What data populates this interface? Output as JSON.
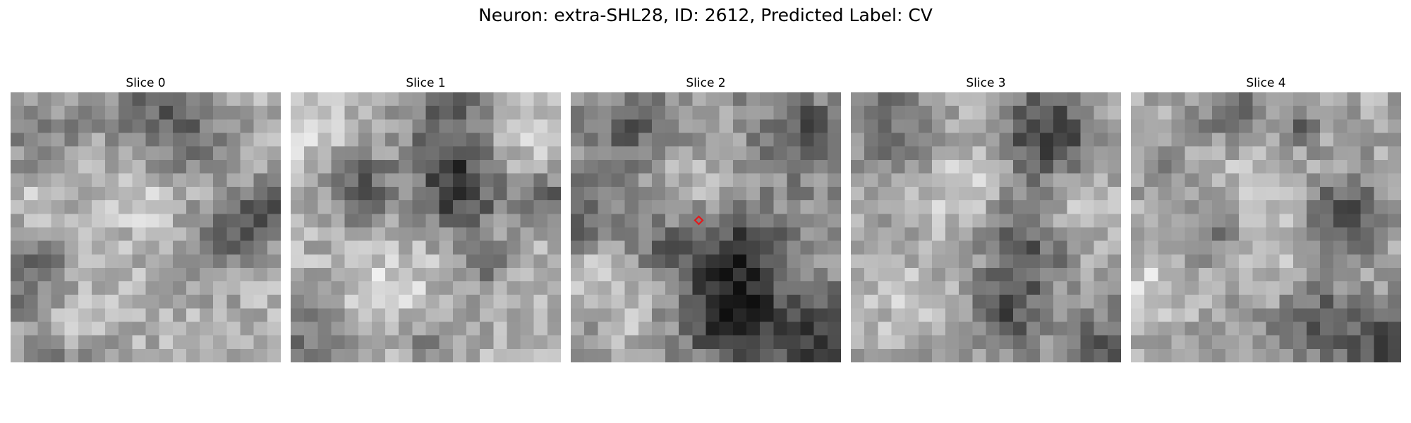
{
  "figure": {
    "title": "Neuron: extra-SHL28, ID: 2612, Predicted Label: CV"
  },
  "grid_size": 20,
  "marker": {
    "slice_index": 2,
    "shape": "diamond-outline",
    "color": "#e41a1c",
    "cell": [
      9.5,
      9.5
    ]
  },
  "slices": [
    {
      "title": "Slice 0",
      "base": 175,
      "dark_blobs": [
        [
          11,
          2,
          2.8,
          90
        ],
        [
          1,
          2,
          3,
          45
        ],
        [
          18.5,
          8.5,
          1.6,
          100
        ],
        [
          15,
          10.5,
          1.8,
          80
        ],
        [
          0,
          12.5,
          2.5,
          70
        ],
        [
          3,
          19.5,
          1.5,
          50
        ],
        [
          6,
          19.5,
          1.5,
          45
        ]
      ],
      "light_blobs": [
        [
          1.5,
          7.5,
          1.4,
          55
        ],
        [
          9,
          6.5,
          2.5,
          40
        ],
        [
          5,
          17.5,
          2,
          30
        ]
      ]
    },
    {
      "title": "Slice 1",
      "base": 180,
      "dark_blobs": [
        [
          12,
          6.5,
          2.3,
          130
        ],
        [
          4.5,
          6.5,
          2,
          85
        ],
        [
          19,
          7.5,
          1.5,
          80
        ],
        [
          11,
          0.5,
          2.6,
          80
        ],
        [
          1,
          17.5,
          2.2,
          60
        ],
        [
          10,
          17.5,
          2,
          55
        ],
        [
          14,
          12.5,
          1.2,
          55
        ]
      ],
      "light_blobs": [
        [
          7,
          14.5,
          2.5,
          40
        ],
        [
          1,
          2.5,
          2,
          35
        ],
        [
          16,
          3.5,
          2,
          30
        ]
      ]
    },
    {
      "title": "Slice 2",
      "base": 150,
      "dark_blobs": [
        [
          12,
          11.5,
          2.5,
          95
        ],
        [
          11,
          16,
          2.4,
          110
        ],
        [
          17.5,
          17.5,
          2.2,
          90
        ],
        [
          16.5,
          2.5,
          2,
          70
        ],
        [
          4,
          2,
          2,
          55
        ],
        [
          0,
          8.5,
          1.8,
          55
        ],
        [
          6.5,
          10.5,
          1.5,
          45
        ]
      ],
      "light_blobs": [
        [
          1,
          13,
          1.5,
          55
        ],
        [
          9,
          6.5,
          2.5,
          35
        ],
        [
          4,
          16,
          2,
          35
        ]
      ]
    },
    {
      "title": "Slice 3",
      "base": 168,
      "dark_blobs": [
        [
          14,
          2.5,
          2.3,
          110
        ],
        [
          12.5,
          10.5,
          2.5,
          80
        ],
        [
          11,
          15.5,
          1.8,
          90
        ],
        [
          18,
          18.5,
          2.4,
          80
        ],
        [
          1,
          1,
          2.5,
          55
        ],
        [
          4,
          4,
          1.5,
          35
        ]
      ],
      "light_blobs": [
        [
          8,
          7,
          2.5,
          45
        ],
        [
          16,
          8.5,
          2,
          40
        ],
        [
          3,
          14.5,
          2,
          30
        ]
      ]
    },
    {
      "title": "Slice 4",
      "base": 168,
      "dark_blobs": [
        [
          15.5,
          8.5,
          2,
          100
        ],
        [
          13.5,
          16.5,
          2.4,
          75
        ],
        [
          18.5,
          18.5,
          2,
          90
        ],
        [
          7,
          0.5,
          1.8,
          70
        ],
        [
          12,
          2,
          1.2,
          60
        ],
        [
          5,
          10,
          1.5,
          45
        ],
        [
          1.5,
          4.5,
          1.2,
          35
        ]
      ],
      "light_blobs": [
        [
          1,
          14,
          1.5,
          50
        ],
        [
          9,
          5.5,
          2.2,
          35
        ],
        [
          11,
          12,
          2,
          30
        ]
      ]
    }
  ]
}
